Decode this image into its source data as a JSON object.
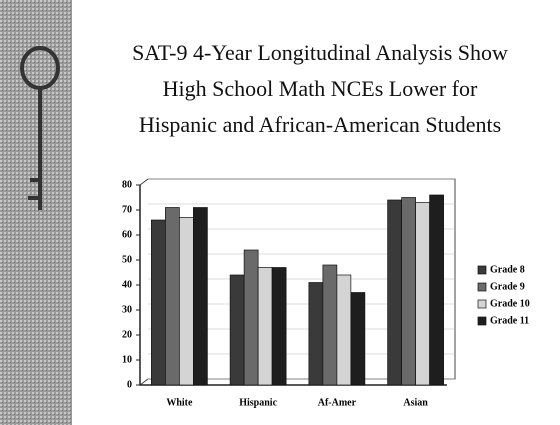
{
  "chart_data": {
    "type": "bar",
    "title": [
      "SAT-9 4-Year Longitudinal Analysis Show",
      "High School Math NCEs Lower for",
      "Hispanic and African-American Students"
    ],
    "categories": [
      "White",
      "Hispanic",
      "Af-Amer",
      "Asian"
    ],
    "series": [
      {
        "name": "Grade 8",
        "color": "#3a3a3a",
        "values": [
          66,
          44,
          41,
          74
        ]
      },
      {
        "name": "Grade 9",
        "color": "#6a6a6a",
        "values": [
          71,
          54,
          48,
          75
        ]
      },
      {
        "name": "Grade 10",
        "color": "#d4d4d4",
        "values": [
          67,
          47,
          44,
          73
        ]
      },
      {
        "name": "Grade 11",
        "color": "#1e1e1e",
        "values": [
          71,
          47,
          37,
          76
        ]
      }
    ],
    "ylim": [
      0,
      80
    ],
    "yticks": [
      0,
      10,
      20,
      30,
      40,
      50,
      60,
      70,
      80
    ],
    "grid": true,
    "legend": "right"
  }
}
